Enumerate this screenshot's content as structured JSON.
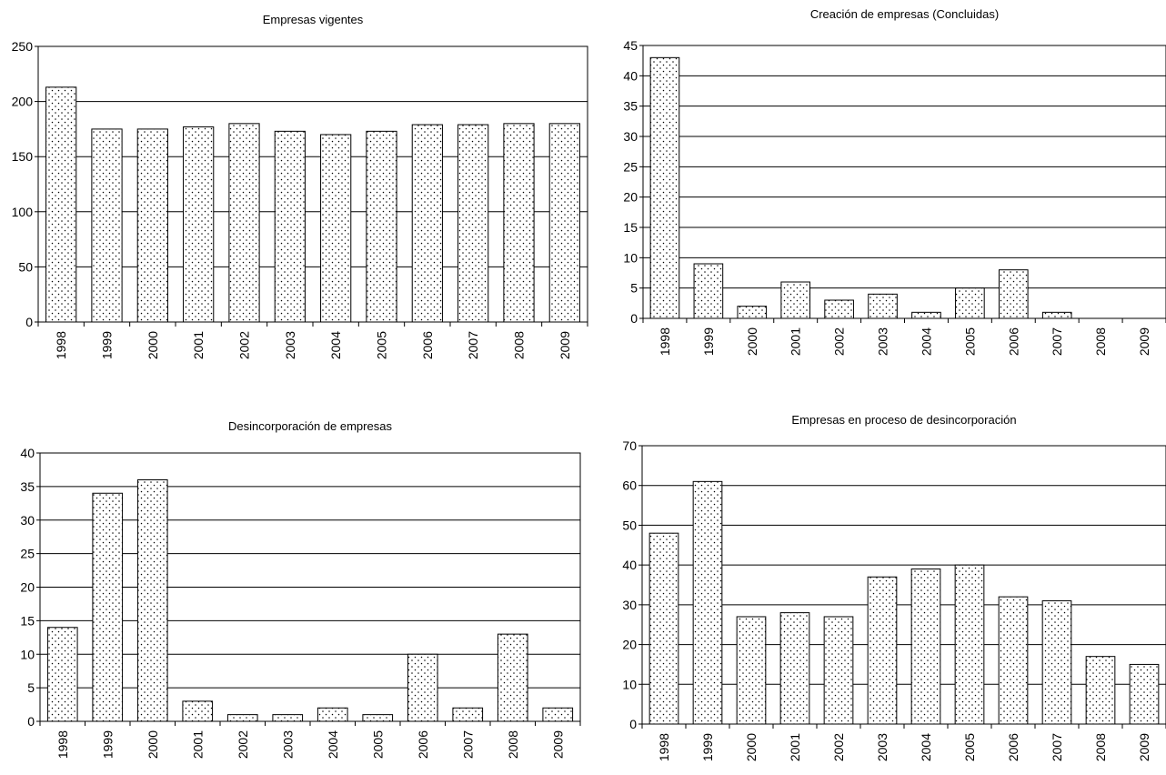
{
  "colors": {
    "bar_fill": "#ffffff",
    "bar_dots": "#000000",
    "axis": "#000000",
    "grid": "#000000"
  },
  "chart_data": [
    {
      "type": "bar",
      "title": "Empresas vigentes",
      "categories": [
        "1998",
        "1999",
        "2000",
        "2001",
        "2002",
        "2003",
        "2004",
        "2005",
        "2006",
        "2007",
        "2008",
        "2009"
      ],
      "values": [
        213,
        175,
        175,
        177,
        180,
        173,
        170,
        173,
        179,
        179,
        180,
        180
      ],
      "ylim": [
        0,
        250
      ],
      "yticks": [
        "0",
        "50",
        "100",
        "150",
        "200",
        "250"
      ],
      "grid": true,
      "xlabel": "",
      "ylabel": ""
    },
    {
      "type": "bar",
      "title": "Creación de empresas (Concluidas)",
      "categories": [
        "1998",
        "1999",
        "2000",
        "2001",
        "2002",
        "2003",
        "2004",
        "2005",
        "2006",
        "2007",
        "2008",
        "2009"
      ],
      "values": [
        43,
        9,
        2,
        6,
        3,
        4,
        1,
        5,
        8,
        1,
        0,
        0
      ],
      "ylim": [
        0,
        45
      ],
      "yticks": [
        "0",
        "5",
        "10",
        "15",
        "20",
        "25",
        "30",
        "35",
        "40",
        "45"
      ],
      "grid": true,
      "xlabel": "",
      "ylabel": ""
    },
    {
      "type": "bar",
      "title": "Desincorporación de empresas",
      "categories": [
        "1998",
        "1999",
        "2000",
        "2001",
        "2002",
        "2003",
        "2004",
        "2005",
        "2006",
        "2007",
        "2008",
        "2009"
      ],
      "values": [
        14,
        34,
        36,
        3,
        1,
        1,
        2,
        1,
        10,
        2,
        13,
        2
      ],
      "ylim": [
        0,
        40
      ],
      "yticks": [
        "0",
        "5",
        "10",
        "15",
        "20",
        "25",
        "30",
        "35",
        "40"
      ],
      "grid": true,
      "xlabel": "",
      "ylabel": ""
    },
    {
      "type": "bar",
      "title": "Empresas en proceso de desincorporación",
      "categories": [
        "1998",
        "1999",
        "2000",
        "2001",
        "2002",
        "2003",
        "2004",
        "2005",
        "2006",
        "2007",
        "2008",
        "2009"
      ],
      "values": [
        48,
        61,
        27,
        28,
        27,
        37,
        39,
        40,
        32,
        31,
        17,
        15
      ],
      "ylim": [
        0,
        70
      ],
      "yticks": [
        "0",
        "10",
        "20",
        "30",
        "40",
        "50",
        "60",
        "70"
      ],
      "grid": true,
      "xlabel": "",
      "ylabel": ""
    }
  ]
}
